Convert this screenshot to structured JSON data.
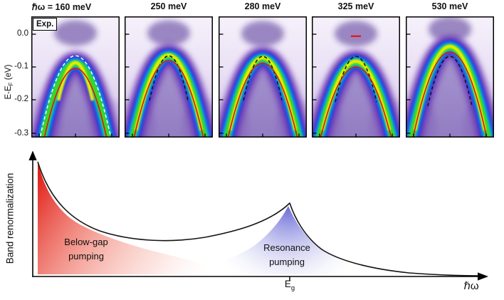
{
  "arpes": {
    "exp_label": "Exp.",
    "y_axis": {
      "label_pre": "E-E",
      "label_sub": "F",
      "label_post": " (eV)",
      "ticks": [
        "0.0",
        "-0.1",
        "-0.2",
        "-0.3"
      ]
    },
    "panels": [
      {
        "title": "ℏω = 160 meV"
      },
      {
        "title": "250 meV"
      },
      {
        "title": "280 meV"
      },
      {
        "title": "325 meV"
      },
      {
        "title": "530 meV"
      }
    ]
  },
  "schematic": {
    "y_axis_label": "Band renormalization",
    "x_axis_label": "ℏω",
    "eg_main": "E",
    "eg_sub": "g",
    "below_gap": {
      "line1": "Below-gap",
      "line2": "pumping"
    },
    "resonance": {
      "line1": "Resonance",
      "line2": "pumping"
    }
  },
  "colors": {
    "fit_curve_red": "#e81212",
    "below_gap_red": "#e01810",
    "resonance_blue": "#6a6ad8",
    "heat_background": "#efe8f7",
    "heat_hot_core": "#eef000"
  },
  "chart_data": [
    {
      "type": "heatmap",
      "title": "Pump-probe ARPES valence band spectra vs pump photon energy",
      "ylabel": "E-EF (eV)",
      "yticks": [
        "0.0",
        "-0.1",
        "-0.2",
        "-0.3"
      ],
      "ylim_eV": [
        -0.307,
        0.054
      ],
      "colormap_low_to_high": [
        "#efe8f7",
        "#6f3ab6",
        "#2a2ed8",
        "#00b4ee",
        "#38d628",
        "#eef000"
      ],
      "panels": [
        {
          "label": "ℏω = 160 meV",
          "pump_photon_energy_meV": 160,
          "renormalized_band_apex_eV": -0.103,
          "equilibrium_band_apex_eV": -0.065,
          "reference_curve_style": "dashed-white",
          "fit_curve_style": "solid-red"
        },
        {
          "label": "250 meV",
          "pump_photon_energy_meV": 250,
          "renormalized_band_apex_eV": -0.08,
          "equilibrium_band_apex_eV": -0.065,
          "reference_curve_style": "dashed-black",
          "fit_curve_style": "solid-red"
        },
        {
          "label": "280 meV",
          "pump_photon_energy_meV": 280,
          "renormalized_band_apex_eV": -0.088,
          "equilibrium_band_apex_eV": -0.067,
          "reference_curve_style": "dashed-black",
          "fit_curve_style": "solid-red"
        },
        {
          "label": "325 meV",
          "pump_photon_energy_meV": 325,
          "renormalized_band_apex_eV": -0.099,
          "equilibrium_band_apex_eV": -0.067,
          "reference_curve_style": "dashed-black",
          "fit_curve_style": "solid-red",
          "red_marker_eV": -0.006
        },
        {
          "label": "530 meV",
          "pump_photon_energy_meV": 530,
          "renormalized_band_apex_eV": -0.054,
          "equilibrium_band_apex_eV": -0.067,
          "reference_curve_style": "dashed-black",
          "fit_curve_style": "solid-red"
        }
      ]
    },
    {
      "type": "line",
      "ylabel": "Band renormalization",
      "xlabel": "ℏω",
      "x_tick_labels": [
        "Eg"
      ],
      "annotations": [
        {
          "text": "Below-gap pumping",
          "color": "#e01810",
          "region": "small ℏω below the gap"
        },
        {
          "text": "Resonance pumping",
          "color": "#6a6ad8",
          "region": "sharp cusp at ℏω = Eg"
        }
      ],
      "curve_shape": "large renormalization at small ℏω decaying to a minimum, sharp cusp maximum at ℏω = Eg, then decay toward zero at large ℏω"
    }
  ]
}
